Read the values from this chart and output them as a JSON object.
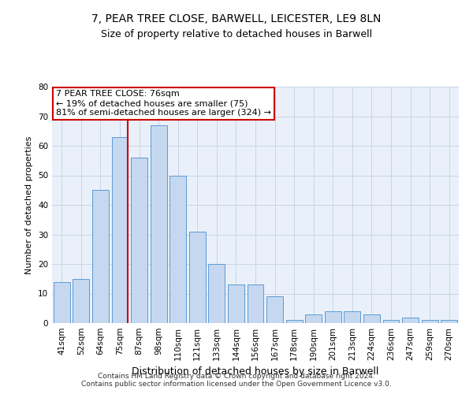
{
  "title1": "7, PEAR TREE CLOSE, BARWELL, LEICESTER, LE9 8LN",
  "title2": "Size of property relative to detached houses in Barwell",
  "xlabel": "Distribution of detached houses by size in Barwell",
  "ylabel": "Number of detached properties",
  "categories": [
    "41sqm",
    "52sqm",
    "64sqm",
    "75sqm",
    "87sqm",
    "98sqm",
    "110sqm",
    "121sqm",
    "133sqm",
    "144sqm",
    "156sqm",
    "167sqm",
    "178sqm",
    "190sqm",
    "201sqm",
    "213sqm",
    "224sqm",
    "236sqm",
    "247sqm",
    "259sqm",
    "270sqm"
  ],
  "values": [
    14,
    15,
    45,
    63,
    56,
    67,
    50,
    31,
    20,
    13,
    13,
    9,
    1,
    3,
    4,
    4,
    3,
    1,
    2,
    1,
    1
  ],
  "bar_color": "#c5d8f0",
  "bar_edge_color": "#5b9bd5",
  "vline_x_index": 3,
  "property_label": "7 PEAR TREE CLOSE: 76sqm",
  "annotation_line1": "← 19% of detached houses are smaller (75)",
  "annotation_line2": "81% of semi-detached houses are larger (324) →",
  "annotation_box_facecolor": "#ffffff",
  "annotation_box_edgecolor": "#cc0000",
  "vline_color": "#cc0000",
  "grid_color": "#c8d4e8",
  "plot_bg_color": "#eaf0f9",
  "footer_text": "Contains HM Land Registry data © Crown copyright and database right 2024.\nContains public sector information licensed under the Open Government Licence v3.0.",
  "ylim": [
    0,
    80
  ],
  "yticks": [
    0,
    10,
    20,
    30,
    40,
    50,
    60,
    70,
    80
  ],
  "title1_fontsize": 10,
  "title2_fontsize": 9,
  "ylabel_fontsize": 8,
  "xlabel_fontsize": 9,
  "tick_fontsize": 7.5,
  "footer_fontsize": 6.5,
  "ann_fontsize": 8
}
